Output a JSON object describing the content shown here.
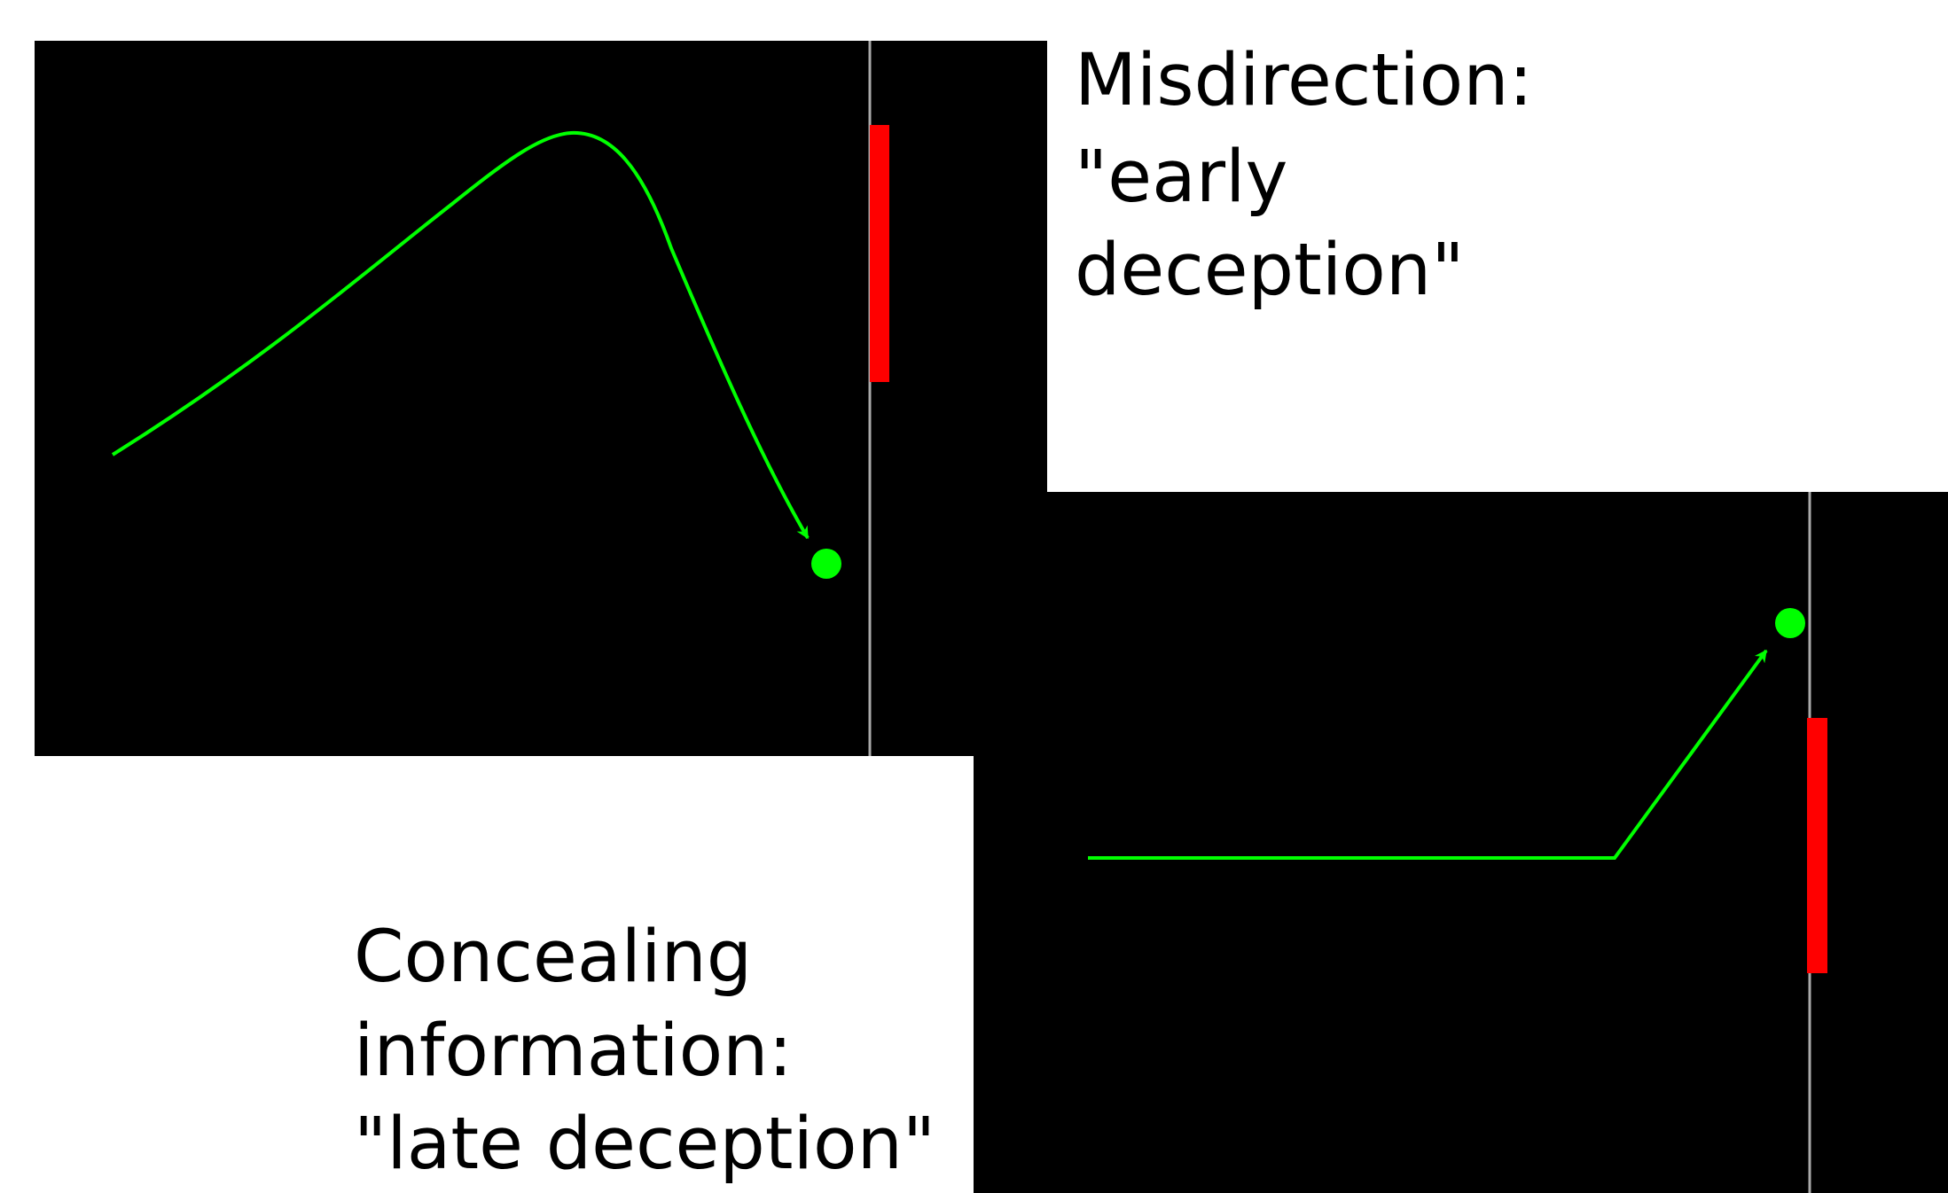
{
  "misdirection": {
    "lines": [
      "Misdirection:",
      "\"early",
      "deception\""
    ]
  },
  "concealing": {
    "lines": [
      "Concealing",
      "information:",
      "\"late deception\""
    ]
  }
}
